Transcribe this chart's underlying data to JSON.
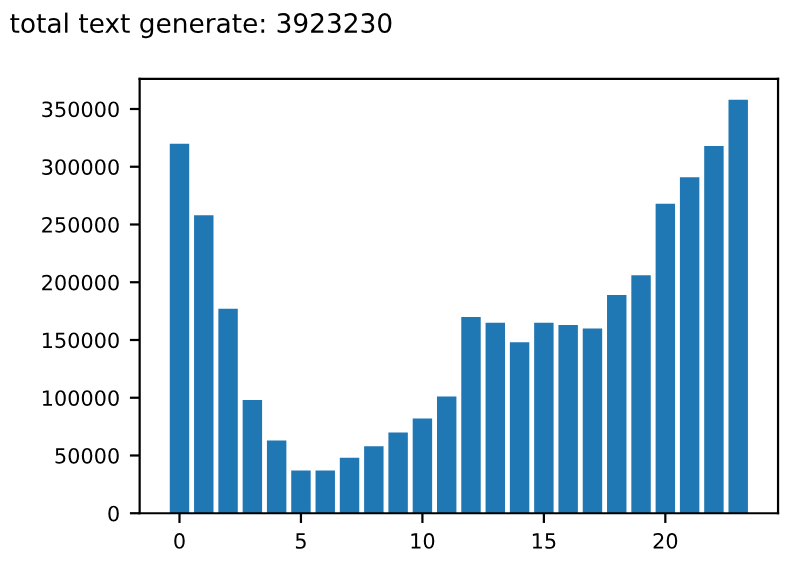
{
  "chart_data": {
    "type": "bar",
    "title": "total text generate: 3923230",
    "x": [
      0,
      1,
      2,
      3,
      4,
      5,
      6,
      7,
      8,
      9,
      10,
      11,
      12,
      13,
      14,
      15,
      16,
      17,
      18,
      19,
      20,
      21,
      22,
      23
    ],
    "values": [
      320000,
      258000,
      177000,
      98000,
      63000,
      37000,
      37000,
      48000,
      58000,
      70000,
      82000,
      101000,
      170000,
      165000,
      148000,
      165000,
      163000,
      160000,
      189000,
      206000,
      268000,
      291000,
      318000,
      358000
    ],
    "color": "#1f77b4",
    "xlim": [
      -1.64,
      24.64
    ],
    "xticks": [
      0,
      5,
      10,
      15,
      20
    ],
    "ylim": [
      0,
      376000
    ],
    "yticks": [
      0,
      50000,
      100000,
      150000,
      200000,
      250000,
      300000,
      350000
    ],
    "grid": false
  }
}
